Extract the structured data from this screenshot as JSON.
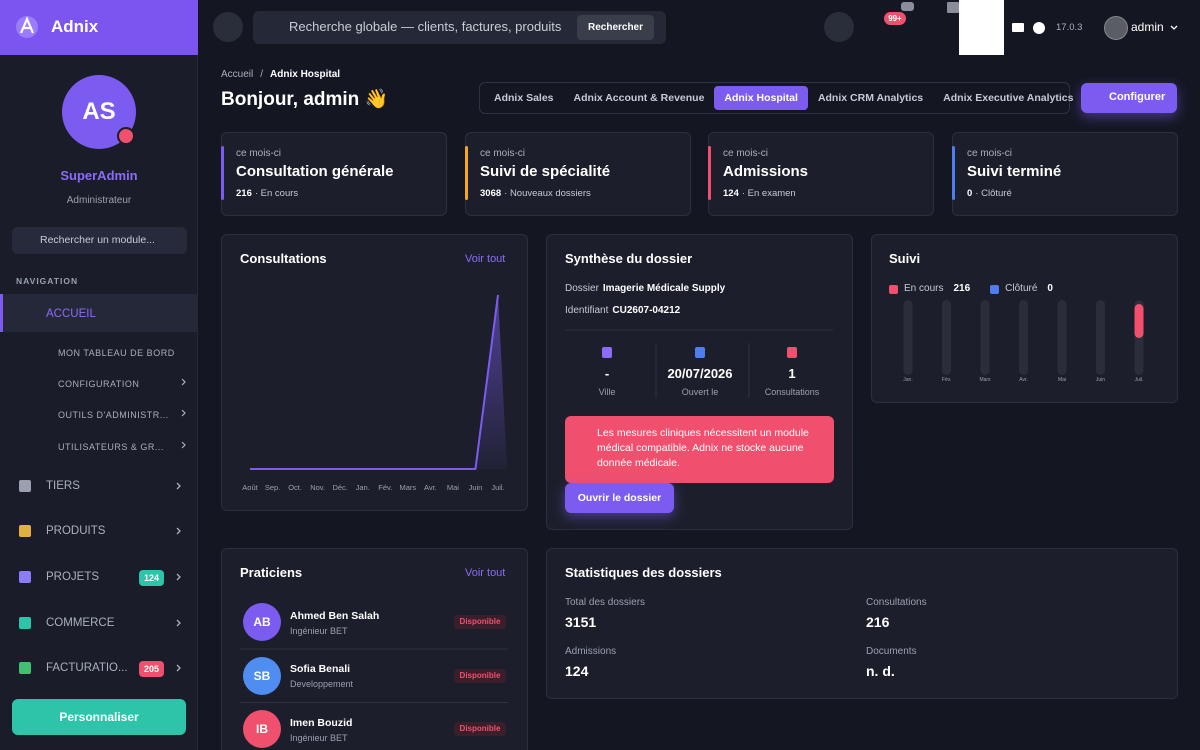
{
  "sidebar": {
    "brand": "Adnix",
    "avatar_initials": "AS",
    "user_name": "SuperAdmin",
    "user_role": "Administrateur",
    "search_placeholder": "Rechercher un module...",
    "nav_heading": "NAVIGATION",
    "menu": [
      {
        "label": "ACCUEIL",
        "active": true,
        "icon_color": "#8b6cf7",
        "submenu": [
          "MON TABLEAU DE BORD",
          "CONFIGURATION",
          "OUTILS D'ADMINISTR...",
          "UTILISATEURS & GR..."
        ]
      },
      {
        "label": "TIERS",
        "icon_color": "#9aa0b0"
      },
      {
        "label": "PRODUITS",
        "icon_color": "#e0b040"
      },
      {
        "label": "PROJETS",
        "icon_color": "#8b7cf7",
        "badge": 124,
        "badge_color": "#2ec4a9"
      },
      {
        "label": "COMMERCE",
        "icon_color": "#2ec4a9"
      },
      {
        "label": "FACTURATIO...",
        "icon_color": "#3fbf6f",
        "badge": 205,
        "badge_color": "#f0506e"
      }
    ],
    "button": "Personnaliser"
  },
  "topbar": {
    "search_placeholder": "Recherche globale — clients, factures, produits",
    "search_button": "Rechercher",
    "notification_badge": "99+",
    "version": "17.0.3",
    "user": "admin"
  },
  "header": {
    "breadcrumb": [
      "Accueil",
      "Adnix Hospital"
    ],
    "breadcrumb_separator": "/",
    "greeting": "Bonjour, admin 👋",
    "tabs": [
      "Adnix Sales",
      "Adnix Account & Revenue",
      "Adnix Hospital",
      "Adnix CRM Analytics",
      "Adnix Executive Analytics"
    ],
    "active_tab": 2,
    "configure_button": "Configurer"
  },
  "kpis": [
    {
      "period": "ce mois-ci",
      "title": "Consultation générale",
      "value": 216,
      "note": "· En cours",
      "color": "#7c5cf0"
    },
    {
      "period": "ce mois-ci",
      "title": "Suivi de spécialité",
      "value": 3068,
      "note": "· Nouveaux dossiers",
      "color": "#f5a623"
    },
    {
      "period": "ce mois-ci",
      "title": "Admissions",
      "value": 124,
      "note": "· En examen",
      "color": "#f0506e"
    },
    {
      "period": "ce mois-ci",
      "title": "Suivi terminé",
      "value": 0,
      "note": "· Clôturé",
      "color": "#4f7df0"
    }
  ],
  "consultations_card": {
    "title": "Consultations",
    "link": "Voir tout"
  },
  "dossier_card": {
    "title": "Synthèse du dossier",
    "fields": [
      {
        "label": "Dossier",
        "value": "Imagerie Médicale Supply"
      },
      {
        "label": "Identifiant",
        "value": "CU2607-04212"
      }
    ],
    "stats": [
      {
        "value": "-",
        "label": "Ville"
      },
      {
        "value": "20/07/2026",
        "label": "Ouvert le"
      },
      {
        "value": 1,
        "label": "Consultations"
      }
    ],
    "alert": "Les mesures cliniques nécessitent un module médical compatible. Adnix ne stocke aucune donnée médicale.",
    "button": "Ouvrir le dossier"
  },
  "suivi_card": {
    "title": "Suivi"
  },
  "praticiens_card": {
    "title": "Praticiens",
    "link": "Voir tout",
    "items": [
      {
        "initials": "AB",
        "name": "Ahmed Ben Salah",
        "role": "Ingénieur BET",
        "status": "Disponible",
        "color": "#7c5cf0"
      },
      {
        "initials": "SB",
        "name": "Sofia Benali",
        "role": "Developpement",
        "status": "Disponible",
        "color": "#4f8ef0"
      },
      {
        "initials": "IB",
        "name": "Imen Bouzid",
        "role": "Ingénieur BET",
        "status": "Disponible",
        "color": "#f0506e"
      }
    ]
  },
  "stats_card": {
    "title": "Statistiques des dossiers",
    "items": [
      {
        "label": "Total des dossiers",
        "value": 3151
      },
      {
        "label": "Consultations",
        "value": 216
      },
      {
        "label": "Admissions",
        "value": 124
      },
      {
        "label": "Documents",
        "value": "n. d."
      }
    ]
  },
  "chart_data": [
    {
      "type": "line",
      "categories": [
        "Août",
        "Sep.",
        "Oct.",
        "Nov.",
        "Déc.",
        "Jan.",
        "Fév.",
        "Mars",
        "Avr.",
        "Mai",
        "Juin",
        "Juil."
      ],
      "values": [
        0,
        0,
        0,
        0,
        0,
        0,
        0,
        0,
        0,
        0,
        0,
        216
      ],
      "color": "#7c5cf0"
    },
    {
      "type": "bar",
      "categories": [
        "Jan.",
        "Fév.",
        "Mars",
        "Avr.",
        "Mai",
        "Juin",
        "Juil."
      ],
      "series": [
        {
          "name": "En cours",
          "color": "#f0506e",
          "total": 216,
          "values": [
            0,
            0,
            0,
            0,
            0,
            0,
            216
          ]
        },
        {
          "name": "Clôturé",
          "color": "#4f7df0",
          "total": 0,
          "values": [
            0,
            0,
            0,
            0,
            0,
            0,
            0
          ]
        }
      ]
    }
  ]
}
